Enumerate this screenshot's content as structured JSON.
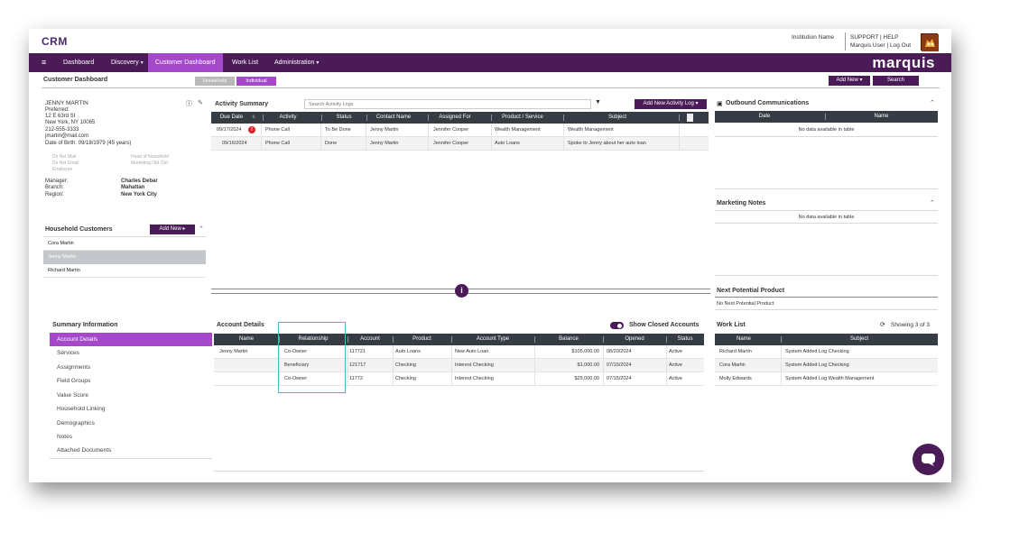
{
  "header": {
    "app_title": "CRM",
    "institution_name": "Institution Name",
    "support_label": "SUPPORT",
    "help_label": "HELP",
    "user_label": "Marquis User",
    "logout_label": "Log Out",
    "separator": "|"
  },
  "nav": {
    "menu_icon": "hamburger-icon",
    "items": [
      "Dashboard",
      "Discovery",
      "Customer Dashboard",
      "Work List",
      "Administration"
    ],
    "logo_text": "marquis"
  },
  "page": {
    "title": "Customer Dashboard",
    "toggle_household": "Household",
    "toggle_individual": "Individual",
    "add_new_label": "Add New",
    "search_label": "Search"
  },
  "customer": {
    "name": "JENNY MARTIN",
    "preferred": "Preferred:",
    "address1": "12 E 63rd St",
    "address2": "New York, NY 10065",
    "phone": "212-555-3333",
    "email": "jmartin@mail.com",
    "dob": "Date of Birth: 09/18/1979 (45 years)",
    "flags_left": [
      "Do Not Mail",
      "Do Not Email",
      "Employee"
    ],
    "flags_right": [
      "Head of household",
      "Marketing Opt Out"
    ],
    "manager_label": "Manager:",
    "manager_value": "Charles Debar",
    "branch_label": "Branch:",
    "branch_value": "Mahattan",
    "region_label": "Region:",
    "region_value": "New York City"
  },
  "household": {
    "title": "Household Customers",
    "add_new_label": "Add New",
    "members": [
      "Cora Martin",
      "Jenny Martin",
      "Richard Martin"
    ]
  },
  "activity": {
    "title": "Activity Summary",
    "search_placeholder": "Search Activity Logs",
    "add_button": "Add New Activity Log",
    "columns": [
      "Due Date",
      "Activity",
      "Status",
      "Contact Name",
      "Assigned For",
      "Product / Service",
      "Subject"
    ],
    "rows": [
      [
        "09/17/2024",
        "Phone Call",
        "To Be Done",
        "Jenny Martin",
        "Jennifer Cooper",
        "Wealth Management",
        "Wealth Management"
      ],
      [
        "09/16/2024",
        "Phone Call",
        "Done",
        "Jenny Martin",
        "Jennifer Cooper",
        "Auto Loans",
        "Spoke to Jenny about her auto loan"
      ]
    ]
  },
  "outbound": {
    "title": "Outbound Communications",
    "columns": [
      "Date",
      "Name"
    ],
    "empty": "No data available in table"
  },
  "marketing": {
    "title": "Marketing Notes",
    "empty": "No data available in table"
  },
  "next_product": {
    "title": "Next Potential Product",
    "empty": "No Next Potential Product"
  },
  "summary": {
    "title": "Summary Information",
    "items": [
      "Account Details",
      "Services",
      "Assignments",
      "Field Groups",
      "Value Score",
      "Household Linking",
      "Demographics",
      "Notes",
      "Attached Documents"
    ]
  },
  "accounts": {
    "title": "Account Details",
    "toggle_label": "Show Closed Accounts",
    "columns": [
      "Name",
      "Relationship",
      "Account",
      "Product",
      "Account Type",
      "Balance",
      "Opened",
      "Status"
    ],
    "rows": [
      [
        "Jenny Martin",
        "Co-Owner",
        "117721",
        "Auto Loans",
        "New Auto Loan",
        "$105,000.00",
        "08/20/2024",
        "Active"
      ],
      [
        "",
        "Beneficiary",
        "121717",
        "Checking",
        "Interest Checking",
        "$1,000.00",
        "07/15/2024",
        "Active"
      ],
      [
        "",
        "Co-Owner",
        "11772",
        "Checking",
        "Interest Checking",
        "$25,000.00",
        "07/15/2024",
        "Active"
      ]
    ]
  },
  "worklist": {
    "title": "Work List",
    "showing": "Showing 3 of 3",
    "columns": [
      "Name",
      "Subject"
    ],
    "rows": [
      [
        "Richard Martin",
        "System Added Log Checking"
      ],
      [
        "Cora Martin",
        "System Added Log Checking"
      ],
      [
        "Molly Edwards",
        "System Added Log Wealth Management"
      ]
    ]
  },
  "colors": {
    "nav_bg": "#4b1b57",
    "accent": "#a548c9",
    "table_header": "#353c44",
    "highlight_box": "#4ab8c4",
    "alert": "#d9252a"
  }
}
